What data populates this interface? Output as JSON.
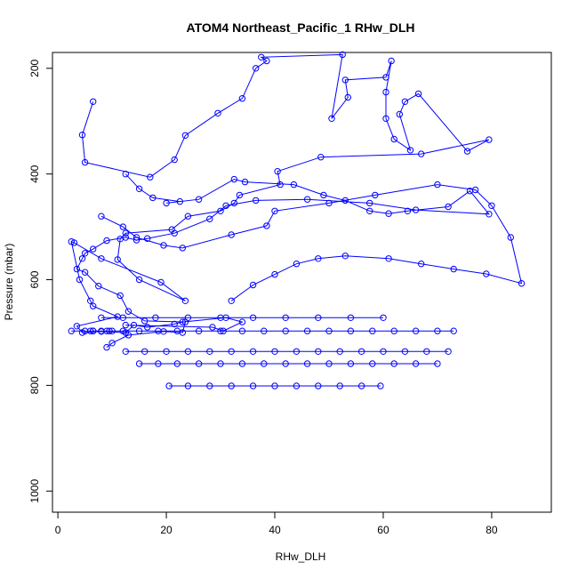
{
  "chart_data": {
    "type": "line",
    "title": "ATOM4 Northeast_Pacific_1 RHw_DLH",
    "xlabel": "RHw_DLH",
    "ylabel": "Pressure (mbar)",
    "xlim": [
      -1,
      91
    ],
    "ylim": [
      1040,
      170
    ],
    "y_reversed": true,
    "x_ticks": [
      0,
      20,
      40,
      60,
      80
    ],
    "y_ticks": [
      200,
      400,
      600,
      800,
      1000
    ],
    "grid": false,
    "color": "#0000ff",
    "marker": "open-circle",
    "series": [
      {
        "x": [
          6.5,
          4.5,
          5,
          17,
          21.5,
          23.5,
          29.5,
          34,
          36.5,
          38.5,
          37.5,
          52.5,
          50.5,
          53.5,
          53,
          60.5,
          61.5,
          60.5,
          60.5,
          62,
          65,
          63,
          64,
          66.5,
          75.5,
          79.5,
          67,
          48.5,
          40.5,
          41,
          33.5,
          32.5,
          30,
          24,
          21,
          12.5,
          11.5,
          11,
          15,
          23.5,
          19,
          8,
          3,
          2.5,
          4,
          6,
          6.5,
          11,
          3.5,
          4.5,
          8,
          12.5,
          14,
          16.5,
          21.5,
          23,
          31,
          34,
          30.5,
          28.5,
          12.5
        ],
        "y": [
          263,
          326,
          378,
          406,
          373,
          327,
          285,
          257,
          200,
          186,
          179,
          174,
          295,
          255,
          222,
          217,
          186,
          245,
          295,
          334,
          355,
          287,
          263,
          248,
          357,
          335,
          362,
          368,
          395,
          420,
          440,
          455,
          470,
          480,
          505,
          512,
          523,
          562,
          600,
          640,
          605,
          560,
          530,
          528,
          600,
          640,
          650,
          670,
          688,
          700,
          698,
          700,
          686,
          690,
          684,
          680,
          672,
          680,
          697,
          690,
          686
        ]
      },
      {
        "x": [
          12.5,
          15,
          17.5,
          22.5,
          20,
          26,
          32.5,
          34.5,
          43.5,
          49,
          53,
          57.5,
          61,
          64.5,
          72,
          76,
          79.5,
          66,
          57.5,
          46,
          36.5,
          31,
          28,
          21.5,
          16.5,
          14.5,
          12.5,
          9,
          6.5,
          5,
          4.5,
          3.5,
          5,
          7.5,
          11.5,
          13,
          16,
          23.5,
          23,
          19.5,
          13,
          10,
          9
        ],
        "y": [
          400,
          428,
          445,
          452,
          455,
          448,
          410,
          415,
          420,
          440,
          450,
          470,
          475,
          470,
          462,
          432,
          476,
          468,
          455,
          448,
          450,
          460,
          485,
          512,
          522,
          525,
          520,
          526,
          542,
          550,
          560,
          580,
          586,
          612,
          630,
          660,
          678,
          680,
          700,
          698,
          705,
          720,
          728
        ]
      },
      {
        "x": [
          8,
          12,
          14.5,
          19.5,
          23,
          32,
          38.5,
          40,
          50,
          58.5,
          70,
          77,
          80,
          83.5,
          85.5,
          79,
          73,
          67,
          61,
          53,
          48,
          44,
          40,
          36,
          32
        ],
        "y": [
          480,
          500,
          520,
          535,
          540,
          515,
          498,
          470,
          455,
          440,
          420,
          430,
          460,
          520,
          607,
          589,
          580,
          570,
          560,
          555,
          560,
          570,
          590,
          610,
          640
        ]
      },
      {
        "x": [
          2.5,
          5,
          8,
          9,
          6.5,
          6,
          6.5,
          9.5,
          10,
          12,
          15,
          18.5,
          22,
          26,
          30,
          34,
          38,
          42,
          46,
          50,
          54,
          58,
          62,
          66,
          70,
          73
        ],
        "y": [
          697,
          697,
          697,
          697,
          697,
          697,
          697,
          697,
          697,
          697,
          697,
          697,
          697,
          697,
          697,
          697,
          697,
          697,
          697,
          697,
          697,
          697,
          697,
          697,
          697,
          697
        ]
      },
      {
        "x": [
          12.5,
          16,
          20,
          24,
          28,
          32,
          36,
          40,
          44,
          48,
          52,
          56,
          60,
          64,
          68,
          72
        ],
        "y": [
          736,
          736,
          736,
          736,
          736,
          736,
          736,
          736,
          736,
          736,
          736,
          736,
          736,
          736,
          736,
          736
        ]
      },
      {
        "x": [
          15,
          18.5,
          22,
          26,
          30,
          34,
          38,
          42,
          46,
          50,
          54,
          58,
          62,
          66,
          70
        ],
        "y": [
          759,
          759,
          759,
          759,
          759,
          759,
          759,
          759,
          759,
          759,
          759,
          759,
          759,
          759,
          759
        ]
      },
      {
        "x": [
          20.5,
          24,
          28,
          32,
          36,
          40,
          44,
          48,
          52,
          56,
          59.5
        ],
        "y": [
          801,
          801,
          801,
          801,
          801,
          801,
          801,
          801,
          801,
          801,
          801
        ]
      },
      {
        "x": [
          8,
          12,
          18,
          24,
          30,
          36,
          42,
          48,
          54,
          60
        ],
        "y": [
          672,
          672,
          672,
          672,
          672,
          672,
          672,
          672,
          672,
          672
        ]
      }
    ]
  }
}
